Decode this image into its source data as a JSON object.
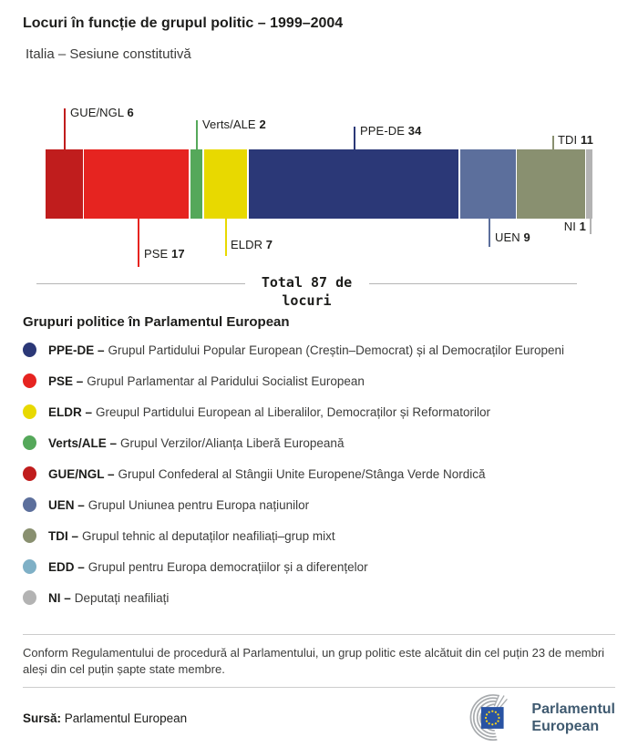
{
  "header": {
    "title": "Locuri în funcție de grupul politic – 1999–2004",
    "subtitle": "Italia – Sesiune constitutivă"
  },
  "chart_data": {
    "type": "bar",
    "variant": "stacked-horizontal",
    "title": "Locuri în funcție de grupul politic – 1999–2004",
    "subtitle": "Italia – Sesiune constitutivă",
    "total": 87,
    "total_label": "Total 87 de locuri",
    "categories": [
      "GUE/NGL",
      "PSE",
      "Verts/ALE",
      "ELDR",
      "PPE-DE",
      "UEN",
      "TDI",
      "NI"
    ],
    "series": [
      {
        "name": "GUE/NGL",
        "value": 6,
        "color": "#c01d1d"
      },
      {
        "name": "PSE",
        "value": 17,
        "color": "#e62420"
      },
      {
        "name": "Verts/ALE",
        "value": 2,
        "color": "#55a85a"
      },
      {
        "name": "ELDR",
        "value": 7,
        "color": "#e8d900"
      },
      {
        "name": "PPE-DE",
        "value": 34,
        "color": "#2b3877"
      },
      {
        "name": "UEN",
        "value": 9,
        "color": "#5c6f9c"
      },
      {
        "name": "TDI",
        "value": 11,
        "color": "#899070"
      },
      {
        "name": "NI",
        "value": 1,
        "color": "#b3b3b3"
      }
    ]
  },
  "legend": {
    "heading": "Grupuri politice în Parlamentul European",
    "items": [
      {
        "abbr": "PPE-DE –",
        "desc": "Grupul Partidului Popular European (Creștin–Democrat) și al Democraților Europeni",
        "color": "#2b3877"
      },
      {
        "abbr": "PSE –",
        "desc": "Grupul Parlamentar al Paridului Socialist European",
        "color": "#e62420"
      },
      {
        "abbr": "ELDR –",
        "desc": "Greupul Partidului European al Liberalilor, Democraților și Reformatorilor",
        "color": "#e8d900"
      },
      {
        "abbr": "Verts/ALE –",
        "desc": "Grupul Verzilor/Alianța Liberă Europeană",
        "color": "#55a85a"
      },
      {
        "abbr": "GUE/NGL –",
        "desc": "Grupul Confederal al Stângii Unite Europene/Stânga Verde Nordică",
        "color": "#c01d1d"
      },
      {
        "abbr": "UEN –",
        "desc": "Grupul Uniunea pentru Europa națiunilor",
        "color": "#5c6f9c"
      },
      {
        "abbr": "TDI –",
        "desc": "Grupul tehnic al deputaților neafiliați–grup mixt",
        "color": "#899070"
      },
      {
        "abbr": "EDD –",
        "desc": "Grupul pentru Europa democrațiilor și a diferențelor",
        "color": "#7fb0c6"
      },
      {
        "abbr": "NI –",
        "desc": "Deputați neafiliați",
        "color": "#b3b3b3"
      }
    ]
  },
  "footnote": {
    "text": "Conform Regulamentului de procedură al Parlamentului, un grup politic este alcătuit din cel puțin 23 de membri aleși din cel puțin șapte state membre."
  },
  "source": {
    "label": "Sursă:",
    "text": "Parlamentul European"
  },
  "logo": {
    "line1": "Parlamentul",
    "line2": "European"
  }
}
